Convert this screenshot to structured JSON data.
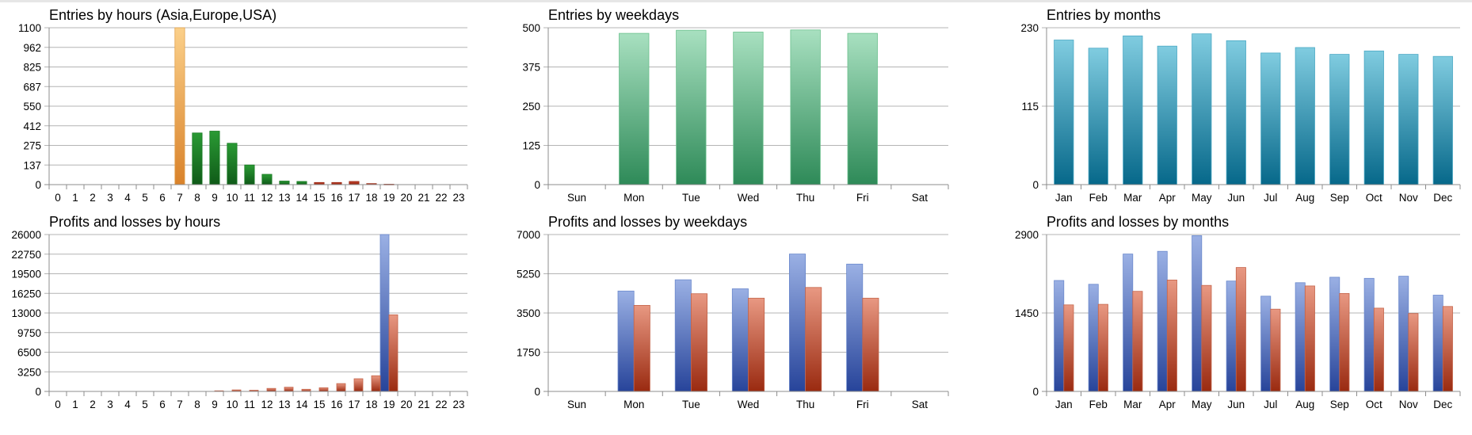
{
  "chart_data": [
    {
      "type": "bar",
      "title": "Entries by hours (Asia,Europe,USA)",
      "categories": [
        "0",
        "1",
        "2",
        "3",
        "4",
        "5",
        "6",
        "7",
        "8",
        "9",
        "10",
        "11",
        "12",
        "13",
        "14",
        "15",
        "16",
        "17",
        "18",
        "19",
        "20",
        "21",
        "22",
        "23"
      ],
      "yticks": [
        "0",
        "137",
        "275",
        "412",
        "550",
        "687",
        "825",
        "962",
        "1100"
      ],
      "ylim": [
        0,
        1100
      ],
      "series": [
        {
          "values": [
            0,
            0,
            0,
            0,
            0,
            0,
            0,
            1100,
            362,
            375,
            290,
            138,
            72,
            25,
            22,
            15,
            15,
            22,
            7,
            3,
            0,
            0,
            0,
            0
          ]
        }
      ],
      "bar_colors": [
        "",
        "",
        "",
        "",
        "",
        "",
        "",
        "#e8a040",
        "#1f8a2a",
        "#1f8a2a",
        "#1f8a2a",
        "#1f8a2a",
        "#1f8a2a",
        "#1f8a2a",
        "#1f8a2a",
        "#b02a10",
        "#b02a10",
        "#b02a10",
        "#b02a10",
        "#b02a10",
        "",
        "",
        "",
        ""
      ],
      "grid": true
    },
    {
      "type": "bar",
      "title": "Entries by weekdays",
      "categories": [
        "Sun",
        "Mon",
        "Tue",
        "Wed",
        "Thu",
        "Fri",
        "Sat"
      ],
      "yticks": [
        "0",
        "125",
        "250",
        "375",
        "500"
      ],
      "ylim": [
        0,
        500
      ],
      "series": [
        {
          "values": [
            0,
            482,
            492,
            486,
            493,
            482,
            0
          ],
          "color": "#3a9a66"
        }
      ],
      "grid": true
    },
    {
      "type": "bar",
      "title": "Entries by months",
      "categories": [
        "Jan",
        "Feb",
        "Mar",
        "Apr",
        "May",
        "Jun",
        "Jul",
        "Aug",
        "Sep",
        "Oct",
        "Nov",
        "Dec"
      ],
      "yticks": [
        "0",
        "115",
        "230"
      ],
      "ylim": [
        0,
        230
      ],
      "series": [
        {
          "values": [
            212,
            200,
            218,
            203,
            221,
            211,
            193,
            201,
            191,
            196,
            191,
            188
          ],
          "color": "#1f86a4"
        }
      ],
      "grid": true
    },
    {
      "type": "bar",
      "title": "Profits and losses by hours",
      "categories": [
        "0",
        "1",
        "2",
        "3",
        "4",
        "5",
        "6",
        "7",
        "8",
        "9",
        "10",
        "11",
        "12",
        "13",
        "14",
        "15",
        "16",
        "17",
        "18",
        "19",
        "20",
        "21",
        "22",
        "23"
      ],
      "yticks": [
        "0",
        "3250",
        "6500",
        "9750",
        "13000",
        "16250",
        "19500",
        "22750",
        "26000"
      ],
      "ylim": [
        0,
        26000
      ],
      "series": [
        {
          "values": [
            0,
            0,
            0,
            0,
            0,
            0,
            0,
            0,
            0,
            0,
            0,
            0,
            0,
            0,
            0,
            0,
            0,
            0,
            0,
            26000,
            0,
            0,
            0,
            0
          ],
          "color": "#4a70c0"
        },
        {
          "values": [
            0,
            0,
            0,
            0,
            0,
            0,
            0,
            0,
            0,
            100,
            250,
            200,
            500,
            700,
            350,
            600,
            1300,
            2100,
            2600,
            12700,
            0,
            0,
            0,
            0
          ],
          "color": "#c04a30"
        }
      ],
      "grid": true
    },
    {
      "type": "bar",
      "title": "Profits and losses by weekdays",
      "categories": [
        "Sun",
        "Mon",
        "Tue",
        "Wed",
        "Thu",
        "Fri",
        "Sat"
      ],
      "yticks": [
        "0",
        "1750",
        "3500",
        "5250",
        "7000"
      ],
      "ylim": [
        0,
        7000
      ],
      "series": [
        {
          "values": [
            0,
            4480,
            4980,
            4580,
            6130,
            5680,
            0
          ],
          "color": "#4a70c0"
        },
        {
          "values": [
            0,
            3840,
            4360,
            4160,
            4640,
            4160,
            0
          ],
          "color": "#c04a30"
        }
      ],
      "grid": true
    },
    {
      "type": "bar",
      "title": "Profits and losses by months",
      "categories": [
        "Jan",
        "Feb",
        "Mar",
        "Apr",
        "May",
        "Jun",
        "Jul",
        "Aug",
        "Sep",
        "Oct",
        "Nov",
        "Dec"
      ],
      "yticks": [
        "0",
        "1450",
        "2900"
      ],
      "ylim": [
        0,
        2900
      ],
      "series": [
        {
          "values": [
            2050,
            1980,
            2540,
            2590,
            2880,
            2040,
            1760,
            2010,
            2110,
            2090,
            2130,
            1780
          ],
          "color": "#4a70c0"
        },
        {
          "values": [
            1600,
            1610,
            1850,
            2060,
            1960,
            2290,
            1520,
            1950,
            1810,
            1540,
            1440,
            1570
          ],
          "color": "#c04a30"
        }
      ],
      "grid": true
    }
  ]
}
